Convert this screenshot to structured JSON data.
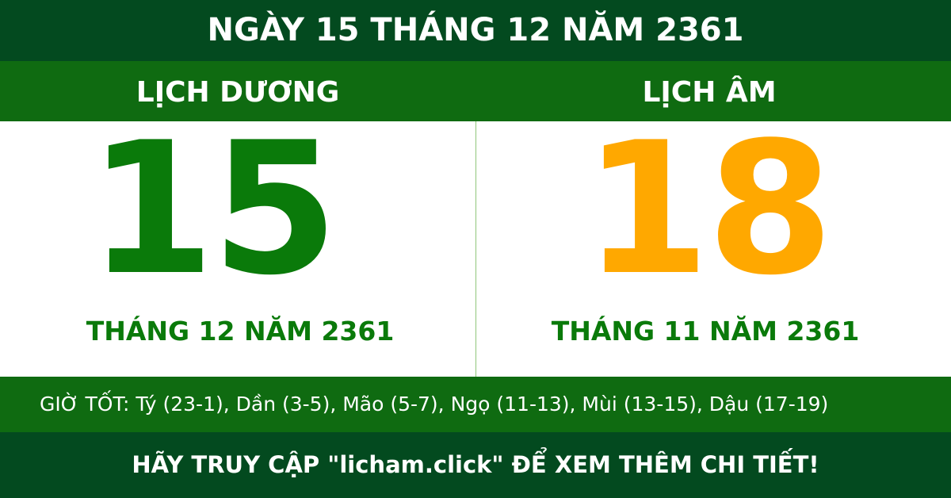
{
  "title": "NGÀY 15 THÁNG 12 NĂM 2361",
  "solar": {
    "label": "LỊCH DƯƠNG",
    "day": "15",
    "month_year": "THÁNG 12 NĂM 2361",
    "color": "#0a7a0a"
  },
  "lunar": {
    "label": "LỊCH ÂM",
    "day": "18",
    "month_year": "THÁNG 11 NĂM 2361",
    "color": "#ffa800"
  },
  "good_hours": "GIỜ TỐT: Tý (23-1), Dần (3-5), Mão (5-7), Ngọ (11-13), Mùi (13-15), Dậu (17-19)",
  "footer": "HÃY TRUY CẬP \"licham.click\" ĐỂ XEM THÊM CHI TIẾT!"
}
